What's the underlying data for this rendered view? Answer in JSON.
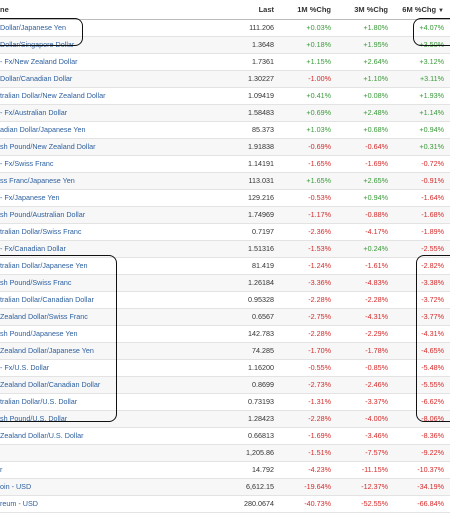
{
  "header": {
    "name": "ne",
    "last": "Last",
    "chg1m": "1M %Chg",
    "chg3m": "3M %Chg",
    "chg6m": "6M %Chg",
    "sort_icon": "triangle-down"
  },
  "rows": [
    {
      "name": "Dollar/Japanese Yen",
      "last": "111.206",
      "m1": "+0.03%",
      "m3": "+1.80%",
      "m6": "+4.07%"
    },
    {
      "name": "Dollar/Singapore Dollar",
      "last": "1.3648",
      "m1": "+0.18%",
      "m3": "+1.95%",
      "m6": "+3.50%"
    },
    {
      "name": "- Fx/New Zealand Dollar",
      "last": "1.7361",
      "m1": "+1.15%",
      "m3": "+2.64%",
      "m6": "+3.12%"
    },
    {
      "name": "Dollar/Canadian Dollar",
      "last": "1.30227",
      "m1": "-1.00%",
      "m3": "+1.10%",
      "m6": "+3.11%"
    },
    {
      "name": "tralian Dollar/New Zealand Dollar",
      "last": "1.09419",
      "m1": "+0.41%",
      "m3": "+0.08%",
      "m6": "+1.93%"
    },
    {
      "name": "- Fx/Australian Dollar",
      "last": "1.58483",
      "m1": "+0.69%",
      "m3": "+2.48%",
      "m6": "+1.14%"
    },
    {
      "name": "adian Dollar/Japanese Yen",
      "last": "85.373",
      "m1": "+1.03%",
      "m3": "+0.68%",
      "m6": "+0.94%"
    },
    {
      "name": "sh Pound/New Zealand Dollar",
      "last": "1.91838",
      "m1": "-0.69%",
      "m3": "-0.64%",
      "m6": "+0.31%"
    },
    {
      "name": "- Fx/Swiss Franc",
      "last": "1.14191",
      "m1": "-1.65%",
      "m3": "-1.69%",
      "m6": "-0.72%"
    },
    {
      "name": "ss Franc/Japanese Yen",
      "last": "113.031",
      "m1": "+1.65%",
      "m3": "+2.65%",
      "m6": "-0.91%"
    },
    {
      "name": "- Fx/Japanese Yen",
      "last": "129.216",
      "m1": "-0.53%",
      "m3": "+0.94%",
      "m6": "-1.64%"
    },
    {
      "name": "sh Pound/Australian Dollar",
      "last": "1.74969",
      "m1": "-1.17%",
      "m3": "-0.88%",
      "m6": "-1.68%"
    },
    {
      "name": "tralian Dollar/Swiss Franc",
      "last": "0.7197",
      "m1": "-2.36%",
      "m3": "-4.17%",
      "m6": "-1.89%"
    },
    {
      "name": "- Fx/Canadian Dollar",
      "last": "1.51316",
      "m1": "-1.53%",
      "m3": "+0.24%",
      "m6": "-2.55%"
    },
    {
      "name": "tralian Dollar/Japanese Yen",
      "last": "81.419",
      "m1": "-1.24%",
      "m3": "-1.61%",
      "m6": "-2.82%"
    },
    {
      "name": "sh Pound/Swiss Franc",
      "last": "1.26184",
      "m1": "-3.36%",
      "m3": "-4.83%",
      "m6": "-3.38%"
    },
    {
      "name": "tralian Dollar/Canadian Dollar",
      "last": "0.95328",
      "m1": "-2.28%",
      "m3": "-2.28%",
      "m6": "-3.72%"
    },
    {
      "name": "Zealand Dollar/Swiss Franc",
      "last": "0.6567",
      "m1": "-2.75%",
      "m3": "-4.31%",
      "m6": "-3.77%"
    },
    {
      "name": "sh Pound/Japanese Yen",
      "last": "142.783",
      "m1": "-2.28%",
      "m3": "-2.29%",
      "m6": "-4.31%"
    },
    {
      "name": "Zealand Dollar/Japanese Yen",
      "last": "74.285",
      "m1": "-1.70%",
      "m3": "-1.78%",
      "m6": "-4.65%"
    },
    {
      "name": "- Fx/U.S. Dollar",
      "last": "1.16200",
      "m1": "-0.55%",
      "m3": "-0.85%",
      "m6": "-5.48%"
    },
    {
      "name": "Zealand Dollar/Canadian Dollar",
      "last": "0.8699",
      "m1": "-2.73%",
      "m3": "-2.46%",
      "m6": "-5.55%"
    },
    {
      "name": "tralian Dollar/U.S. Dollar",
      "last": "0.73193",
      "m1": "-1.31%",
      "m3": "-3.37%",
      "m6": "-6.62%"
    },
    {
      "name": "sh Pound/U.S. Dollar",
      "last": "1.28423",
      "m1": "-2.28%",
      "m3": "-4.00%",
      "m6": "-8.06%"
    },
    {
      "name": "Zealand Dollar/U.S. Dollar",
      "last": "0.66813",
      "m1": "-1.69%",
      "m3": "-3.46%",
      "m6": "-8.36%"
    },
    {
      "name": "",
      "last": "1,205.86",
      "m1": "-1.51%",
      "m3": "-7.57%",
      "m6": "-9.22%"
    },
    {
      "name": "r",
      "last": "14.792",
      "m1": "-4.23%",
      "m3": "-11.15%",
      "m6": "-10.37%"
    },
    {
      "name": "oin - USD",
      "last": "6,612.15",
      "m1": "-19.64%",
      "m3": "-12.37%",
      "m6": "-34.19%"
    },
    {
      "name": "reum - USD",
      "last": "280.0674",
      "m1": "-40.73%",
      "m3": "-52.55%",
      "m6": "-66.84%"
    }
  ],
  "colors": {
    "positive": "#3a9a3a",
    "negative": "#d42a2a",
    "link": "#2c5f9e",
    "annotation": "#111111"
  }
}
